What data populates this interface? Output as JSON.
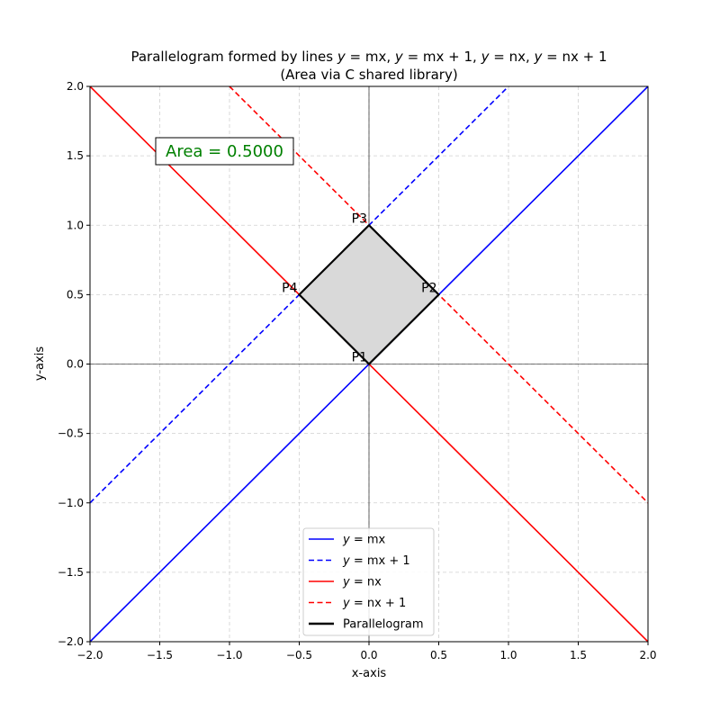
{
  "chart_data": {
    "type": "line",
    "title_line1": "Parallelogram formed by lines y = mx, y = mx + 1, y = nx, y = nx + 1",
    "title_line2": "(Area via C shared library)",
    "xlabel": "x-axis",
    "ylabel": "y-axis",
    "xlim": [
      -2.0,
      2.0
    ],
    "ylim": [
      -2.0,
      2.0
    ],
    "xticks": [
      -2.0,
      -1.5,
      -1.0,
      -0.5,
      0.0,
      0.5,
      1.0,
      1.5,
      2.0
    ],
    "yticks": [
      -2.0,
      -1.5,
      -1.0,
      -0.5,
      0.0,
      0.5,
      1.0,
      1.5,
      2.0
    ],
    "xtick_labels": [
      "−2.0",
      "−1.5",
      "−1.0",
      "−0.5",
      "0.0",
      "0.5",
      "1.0",
      "1.5",
      "2.0"
    ],
    "ytick_labels": [
      "−2.0",
      "−1.5",
      "−1.0",
      "−0.5",
      "0.0",
      "0.5",
      "1.0",
      "1.5",
      "2.0"
    ],
    "grid": true,
    "legend_placement": "lower-center",
    "series": [
      {
        "name": "y = mx",
        "color": "#0000ff",
        "style": "solid",
        "x": [
          -2.0,
          2.0
        ],
        "y": [
          -2.0,
          2.0
        ]
      },
      {
        "name": "y = mx + 1",
        "color": "#0000ff",
        "style": "dashed",
        "x": [
          -2.0,
          2.0
        ],
        "y": [
          -1.0,
          3.0
        ]
      },
      {
        "name": "y = nx",
        "color": "#ff0000",
        "style": "solid",
        "x": [
          -2.0,
          2.0
        ],
        "y": [
          2.0,
          -2.0
        ]
      },
      {
        "name": "y = nx + 1",
        "color": "#ff0000",
        "style": "dashed",
        "x": [
          -2.0,
          2.0
        ],
        "y": [
          3.0,
          -1.0
        ]
      }
    ],
    "parallelogram": {
      "name": "Parallelogram",
      "color": "#000000",
      "fill": "#d9d9d9",
      "vertices": [
        {
          "label": "P1",
          "x": 0.0,
          "y": 0.0
        },
        {
          "label": "P2",
          "x": 0.5,
          "y": 0.5
        },
        {
          "label": "P3",
          "x": 0.0,
          "y": 1.0
        },
        {
          "label": "P4",
          "x": -0.5,
          "y": 0.5
        }
      ]
    },
    "annotation": {
      "text": "Area = 0.5000",
      "color": "#008000",
      "x": -1.0,
      "y": 1.55
    }
  }
}
